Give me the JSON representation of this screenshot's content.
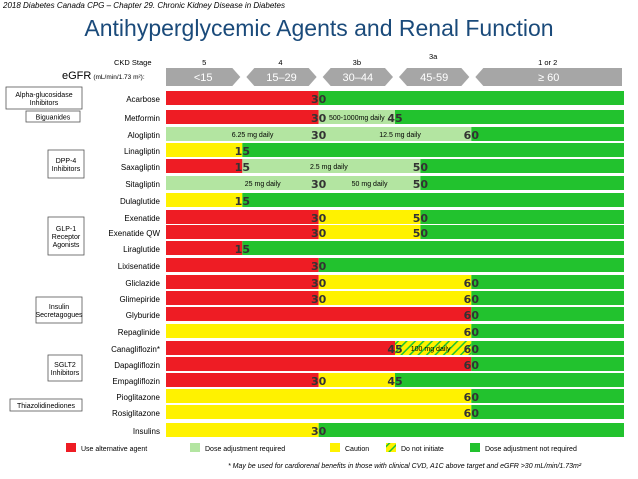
{
  "header_note": "2018 Diabetes Canada CPG – Chapter 29. Chronic Kidney Disease in Diabetes",
  "title": "Antihyperglycemic Agents and Renal Function",
  "ckd_stage_label": "CKD Stage",
  "egfr_label_main": "eGFR",
  "egfr_label_unit": "(mL/min/1.73 m²):",
  "stages": [
    "5",
    "4",
    "3b",
    "3a",
    "1 or 2"
  ],
  "egfr_bands": [
    "<15",
    "15–29",
    "30–44",
    "45-59",
    "≥ 60"
  ],
  "colors": {
    "red": "#ee1c24",
    "yellow": "#fff200",
    "lightgreen": "#b3e5a1",
    "green": "#22c22e",
    "arrow": "#a6a6a6"
  },
  "classes": [
    {
      "label": "Alpha-glucosidase Inhibitors"
    },
    {
      "label": "Biguanides"
    },
    {
      "label": "DPP-4 Inhibitors"
    },
    {
      "label": "GLP-1 Receptor Agonists"
    },
    {
      "label": "Insulin Secretagogues"
    },
    {
      "label": "SGLT2 Inhibitors"
    },
    {
      "label": "Thiazolidinediones"
    }
  ],
  "chart_data": {
    "type": "table",
    "x_axis": "eGFR (mL/min/1.73 m²)",
    "xlim": [
      0,
      90
    ],
    "rows": [
      {
        "drug": "Acarbose",
        "segments": [
          {
            "from": 0,
            "to": 30,
            "color": "red"
          },
          {
            "from": 30,
            "to": 90,
            "color": "green"
          }
        ],
        "labels": [
          {
            "text": "30",
            "at": 30
          }
        ],
        "notes": []
      },
      {
        "drug": "Metformin",
        "segments": [
          {
            "from": 0,
            "to": 30,
            "color": "red"
          },
          {
            "from": 30,
            "to": 45,
            "color": "lightgreen"
          },
          {
            "from": 45,
            "to": 90,
            "color": "green"
          }
        ],
        "labels": [
          {
            "text": "30",
            "at": 30
          },
          {
            "text": "45",
            "at": 45
          }
        ],
        "notes": [
          {
            "text": "500-1000mg daily",
            "at": 37.5
          }
        ]
      },
      {
        "drug": "Alogliptin",
        "segments": [
          {
            "from": 0,
            "to": 60,
            "color": "lightgreen"
          },
          {
            "from": 60,
            "to": 90,
            "color": "green"
          }
        ],
        "labels": [
          {
            "text": "30",
            "at": 30
          },
          {
            "text": "60",
            "at": 60
          }
        ],
        "notes": [
          {
            "text": "6.25 mg daily",
            "at": 17
          },
          {
            "text": "12.5 mg daily",
            "at": 46
          }
        ]
      },
      {
        "drug": "Linagliptin",
        "segments": [
          {
            "from": 0,
            "to": 15,
            "color": "yellow"
          },
          {
            "from": 15,
            "to": 90,
            "color": "green"
          }
        ],
        "labels": [
          {
            "text": "15",
            "at": 15
          }
        ],
        "notes": []
      },
      {
        "drug": "Saxagliptin",
        "segments": [
          {
            "from": 0,
            "to": 15,
            "color": "red"
          },
          {
            "from": 15,
            "to": 50,
            "color": "lightgreen"
          },
          {
            "from": 50,
            "to": 90,
            "color": "green"
          }
        ],
        "labels": [
          {
            "text": "15",
            "at": 15
          },
          {
            "text": "50",
            "at": 50
          }
        ],
        "notes": [
          {
            "text": "2.5 mg daily",
            "at": 32
          }
        ]
      },
      {
        "drug": "Sitagliptin",
        "segments": [
          {
            "from": 0,
            "to": 50,
            "color": "lightgreen"
          },
          {
            "from": 50,
            "to": 90,
            "color": "green"
          }
        ],
        "labels": [
          {
            "text": "30",
            "at": 30
          },
          {
            "text": "50",
            "at": 50
          }
        ],
        "notes": [
          {
            "text": "25 mg daily",
            "at": 19
          },
          {
            "text": "50 mg daily",
            "at": 40
          }
        ]
      },
      {
        "drug": "Dulaglutide",
        "segments": [
          {
            "from": 0,
            "to": 15,
            "color": "yellow"
          },
          {
            "from": 15,
            "to": 90,
            "color": "green"
          }
        ],
        "labels": [
          {
            "text": "15",
            "at": 15
          }
        ],
        "notes": []
      },
      {
        "drug": "Exenatide",
        "segments": [
          {
            "from": 0,
            "to": 30,
            "color": "red"
          },
          {
            "from": 30,
            "to": 50,
            "color": "yellow"
          },
          {
            "from": 50,
            "to": 90,
            "color": "green"
          }
        ],
        "labels": [
          {
            "text": "30",
            "at": 30
          },
          {
            "text": "50",
            "at": 50
          }
        ],
        "notes": []
      },
      {
        "drug": "Exenatide QW",
        "segments": [
          {
            "from": 0,
            "to": 30,
            "color": "red"
          },
          {
            "from": 30,
            "to": 50,
            "color": "yellow"
          },
          {
            "from": 50,
            "to": 90,
            "color": "green"
          }
        ],
        "labels": [
          {
            "text": "30",
            "at": 30
          },
          {
            "text": "50",
            "at": 50
          }
        ],
        "notes": []
      },
      {
        "drug": "Liraglutide",
        "segments": [
          {
            "from": 0,
            "to": 15,
            "color": "red"
          },
          {
            "from": 15,
            "to": 90,
            "color": "green"
          }
        ],
        "labels": [
          {
            "text": "15",
            "at": 15
          }
        ],
        "notes": []
      },
      {
        "drug": "Lixisenatide",
        "segments": [
          {
            "from": 0,
            "to": 30,
            "color": "red"
          },
          {
            "from": 30,
            "to": 90,
            "color": "green"
          }
        ],
        "labels": [
          {
            "text": "30",
            "at": 30
          }
        ],
        "notes": []
      },
      {
        "drug": "Gliclazide",
        "segments": [
          {
            "from": 0,
            "to": 30,
            "color": "red"
          },
          {
            "from": 30,
            "to": 60,
            "color": "yellow"
          },
          {
            "from": 60,
            "to": 90,
            "color": "green"
          }
        ],
        "labels": [
          {
            "text": "30",
            "at": 30
          },
          {
            "text": "60",
            "at": 60
          }
        ],
        "notes": []
      },
      {
        "drug": "Glimepiride",
        "segments": [
          {
            "from": 0,
            "to": 30,
            "color": "red"
          },
          {
            "from": 30,
            "to": 60,
            "color": "yellow"
          },
          {
            "from": 60,
            "to": 90,
            "color": "green"
          }
        ],
        "labels": [
          {
            "text": "30",
            "at": 30
          },
          {
            "text": "60",
            "at": 60
          }
        ],
        "notes": []
      },
      {
        "drug": "Glyburide",
        "segments": [
          {
            "from": 0,
            "to": 60,
            "color": "red"
          },
          {
            "from": 60,
            "to": 90,
            "color": "green"
          }
        ],
        "labels": [
          {
            "text": "60",
            "at": 60
          }
        ],
        "notes": []
      },
      {
        "drug": "Repaglinide",
        "segments": [
          {
            "from": 0,
            "to": 60,
            "color": "yellow"
          },
          {
            "from": 60,
            "to": 90,
            "color": "green"
          }
        ],
        "labels": [
          {
            "text": "60",
            "at": 60
          }
        ],
        "notes": []
      },
      {
        "drug": "Canagliflozin*",
        "segments": [
          {
            "from": 0,
            "to": 45,
            "color": "red"
          },
          {
            "from": 45,
            "to": 60,
            "color": "hatch"
          },
          {
            "from": 60,
            "to": 90,
            "color": "green"
          }
        ],
        "labels": [
          {
            "text": "45",
            "at": 45
          },
          {
            "text": "60",
            "at": 60
          }
        ],
        "notes": [
          {
            "text": "100 mg daily",
            "at": 52
          }
        ]
      },
      {
        "drug": "Dapagliflozin",
        "segments": [
          {
            "from": 0,
            "to": 60,
            "color": "red"
          },
          {
            "from": 60,
            "to": 90,
            "color": "green"
          }
        ],
        "labels": [
          {
            "text": "60",
            "at": 60
          }
        ],
        "notes": []
      },
      {
        "drug": "Empagliflozin",
        "segments": [
          {
            "from": 0,
            "to": 30,
            "color": "red"
          },
          {
            "from": 30,
            "to": 45,
            "color": "yellow"
          },
          {
            "from": 45,
            "to": 90,
            "color": "green"
          }
        ],
        "labels": [
          {
            "text": "30",
            "at": 30
          },
          {
            "text": "45",
            "at": 45
          }
        ],
        "notes": []
      },
      {
        "drug": "Pioglitazone",
        "segments": [
          {
            "from": 0,
            "to": 60,
            "color": "yellow"
          },
          {
            "from": 60,
            "to": 90,
            "color": "green"
          }
        ],
        "labels": [
          {
            "text": "60",
            "at": 60
          }
        ],
        "notes": []
      },
      {
        "drug": "Rosiglitazone",
        "segments": [
          {
            "from": 0,
            "to": 60,
            "color": "yellow"
          },
          {
            "from": 60,
            "to": 90,
            "color": "green"
          }
        ],
        "labels": [
          {
            "text": "60",
            "at": 60
          }
        ],
        "notes": []
      },
      {
        "drug": "Insulins",
        "segments": [
          {
            "from": 0,
            "to": 30,
            "color": "yellow"
          },
          {
            "from": 30,
            "to": 90,
            "color": "green"
          }
        ],
        "labels": [
          {
            "text": "30",
            "at": 30
          }
        ],
        "notes": []
      }
    ]
  },
  "legend": [
    {
      "label": "Use alternative agent",
      "color": "red"
    },
    {
      "label": "Dose adjustment required",
      "color": "lightgreen"
    },
    {
      "label": "Caution",
      "color": "yellow"
    },
    {
      "label": "Do not initiate",
      "color": "hatch"
    },
    {
      "label": "Dose adjustment not required",
      "color": "green"
    }
  ],
  "footnote": "* May be used for cardiorenal benefits in those with clinical CVD, A1C above target and eGFR >30 mL/min/1.73m²"
}
